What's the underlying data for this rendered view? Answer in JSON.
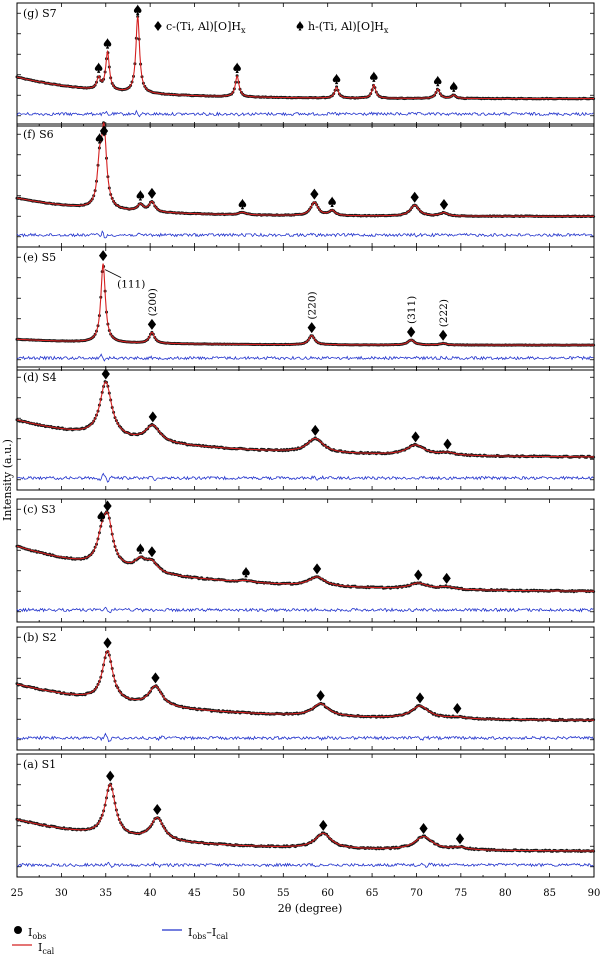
{
  "chart_data": {
    "type": "line",
    "xlabel": "2θ (degree)",
    "ylabel": "Intensity (a.u.)",
    "xlim": [
      25,
      90
    ],
    "xticks": [
      25,
      30,
      35,
      40,
      45,
      50,
      55,
      60,
      65,
      70,
      75,
      80,
      85,
      90
    ],
    "grid": false,
    "top_legend": [
      {
        "marker": "diamond",
        "label": "c-(Ti, Al)[O]H",
        "sub": "x"
      },
      {
        "marker": "spade",
        "label": "h-(Ti, Al)[O]H",
        "sub": "x"
      }
    ],
    "bottom_legend": [
      {
        "marker": "dot",
        "label": "I",
        "sub": "obs"
      },
      {
        "marker": "blue-line",
        "label": "I",
        "sub": "obs",
        "mid": "–I",
        "sub2": "cal"
      },
      {
        "marker": "red-line",
        "label": "I",
        "sub": "cal"
      }
    ],
    "series_colors": {
      "obs": "#1a1a1a",
      "cal": "#d42020",
      "diff": "#2233cc"
    },
    "panels": [
      {
        "label": "(g) S7",
        "background": {
          "start": 0.3,
          "decay": 0.1,
          "end": 0.04,
          "hump": 0.0
        },
        "noise": 0.002,
        "peaks": [
          {
            "x": 34.2,
            "h": 0.14,
            "w": 0.25,
            "marker": "spade"
          },
          {
            "x": 35.2,
            "h": 0.46,
            "w": 0.25,
            "marker": "spade"
          },
          {
            "x": 38.6,
            "h": 0.92,
            "w": 0.25,
            "marker": "spade"
          },
          {
            "x": 49.8,
            "h": 0.25,
            "w": 0.25,
            "marker": "spade"
          },
          {
            "x": 61.0,
            "h": 0.13,
            "w": 0.25,
            "marker": "spade"
          },
          {
            "x": 65.2,
            "h": 0.16,
            "w": 0.25,
            "marker": "spade"
          },
          {
            "x": 72.4,
            "h": 0.11,
            "w": 0.28,
            "marker": "spade"
          },
          {
            "x": 74.2,
            "h": 0.04,
            "w": 0.3,
            "marker": "spade"
          }
        ],
        "hkl": []
      },
      {
        "label": "(f) S6",
        "background": {
          "start": 0.3,
          "decay": 0.1,
          "end": 0.08,
          "hump": 0.0
        },
        "noise": 0.002,
        "peaks": [
          {
            "x": 34.3,
            "h": 0.45,
            "w": 0.3,
            "marker": "spade"
          },
          {
            "x": 34.8,
            "h": 0.92,
            "w": 0.35,
            "marker": "diamond"
          },
          {
            "x": 38.9,
            "h": 0.08,
            "w": 0.4,
            "marker": "spade"
          },
          {
            "x": 40.2,
            "h": 0.12,
            "w": 0.4,
            "marker": "diamond"
          },
          {
            "x": 50.4,
            "h": 0.03,
            "w": 0.5,
            "marker": "spade"
          },
          {
            "x": 58.5,
            "h": 0.16,
            "w": 0.5,
            "marker": "diamond"
          },
          {
            "x": 60.5,
            "h": 0.06,
            "w": 0.4,
            "marker": "spade"
          },
          {
            "x": 69.8,
            "h": 0.13,
            "w": 0.6,
            "marker": "diamond"
          },
          {
            "x": 73.1,
            "h": 0.04,
            "w": 0.5,
            "marker": "diamond"
          }
        ],
        "hkl": []
      },
      {
        "label": "(e) S5",
        "background": {
          "start": 0.08,
          "decay": 0.08,
          "end": 0.01,
          "hump": 0.0
        },
        "noise": 0.001,
        "peaks": [
          {
            "x": 34.7,
            "h": 0.95,
            "w": 0.3,
            "marker": "diamond"
          },
          {
            "x": 40.2,
            "h": 0.13,
            "w": 0.35,
            "marker": "diamond"
          },
          {
            "x": 58.2,
            "h": 0.11,
            "w": 0.4,
            "marker": "diamond"
          },
          {
            "x": 69.4,
            "h": 0.06,
            "w": 0.45,
            "marker": "diamond"
          },
          {
            "x": 73.0,
            "h": 0.02,
            "w": 0.4,
            "marker": "diamond"
          }
        ],
        "hkl": [
          {
            "x": 34.7,
            "text": "(111)",
            "rotated": false
          },
          {
            "x": 40.2,
            "text": "(200)",
            "rotated": true
          },
          {
            "x": 58.2,
            "text": "(220)",
            "rotated": true
          },
          {
            "x": 69.4,
            "text": "(311)",
            "rotated": true
          },
          {
            "x": 73.0,
            "text": "(222)",
            "rotated": true
          }
        ]
      },
      {
        "label": "(d) S4",
        "background": {
          "start": 0.55,
          "decay": 0.06,
          "end": 0.1,
          "hump": 0.0
        },
        "noise": 0.004,
        "peaks": [
          {
            "x": 35.0,
            "h": 0.66,
            "w": 0.8,
            "marker": "diamond"
          },
          {
            "x": 40.3,
            "h": 0.2,
            "w": 1.0,
            "marker": "diamond"
          },
          {
            "x": 58.6,
            "h": 0.17,
            "w": 1.1,
            "marker": "diamond"
          },
          {
            "x": 69.9,
            "h": 0.12,
            "w": 1.2,
            "marker": "diamond"
          },
          {
            "x": 73.5,
            "h": 0.03,
            "w": 1.0,
            "marker": "diamond"
          }
        ],
        "hkl": []
      },
      {
        "label": "(c) S3",
        "background": {
          "start": 0.62,
          "decay": 0.06,
          "end": 0.07,
          "hump": 0.0
        },
        "noise": 0.004,
        "peaks": [
          {
            "x": 34.5,
            "h": 0.22,
            "w": 0.6,
            "marker": "spade"
          },
          {
            "x": 35.2,
            "h": 0.56,
            "w": 0.7,
            "marker": "diamond"
          },
          {
            "x": 38.9,
            "h": 0.13,
            "w": 0.8,
            "marker": "spade"
          },
          {
            "x": 40.2,
            "h": 0.12,
            "w": 0.8,
            "marker": "diamond"
          },
          {
            "x": 50.8,
            "h": 0.02,
            "w": 0.9,
            "marker": "spade"
          },
          {
            "x": 58.8,
            "h": 0.11,
            "w": 1.1,
            "marker": "diamond"
          },
          {
            "x": 70.2,
            "h": 0.07,
            "w": 1.2,
            "marker": "diamond"
          },
          {
            "x": 73.4,
            "h": 0.03,
            "w": 1.0,
            "marker": "diamond"
          }
        ],
        "hkl": []
      },
      {
        "label": "(b) S2",
        "background": {
          "start": 0.5,
          "decay": 0.06,
          "end": 0.06,
          "hump": 0.0
        },
        "noise": 0.004,
        "peaks": [
          {
            "x": 35.2,
            "h": 0.6,
            "w": 0.7,
            "marker": "diamond"
          },
          {
            "x": 40.6,
            "h": 0.24,
            "w": 0.9,
            "marker": "diamond"
          },
          {
            "x": 59.2,
            "h": 0.15,
            "w": 1.1,
            "marker": "diamond"
          },
          {
            "x": 70.4,
            "h": 0.15,
            "w": 1.2,
            "marker": "diamond"
          },
          {
            "x": 74.6,
            "h": 0.02,
            "w": 1.0,
            "marker": "diamond"
          }
        ],
        "hkl": []
      },
      {
        "label": "(a) S1",
        "background": {
          "start": 0.4,
          "decay": 0.07,
          "end": 0.02,
          "hump": 0.0
        },
        "noise": 0.004,
        "peaks": [
          {
            "x": 35.5,
            "h": 0.62,
            "w": 0.7,
            "marker": "diamond"
          },
          {
            "x": 40.8,
            "h": 0.27,
            "w": 0.9,
            "marker": "diamond"
          },
          {
            "x": 59.5,
            "h": 0.18,
            "w": 1.1,
            "marker": "diamond"
          },
          {
            "x": 70.8,
            "h": 0.16,
            "w": 1.2,
            "marker": "diamond"
          },
          {
            "x": 74.9,
            "h": 0.03,
            "w": 1.0,
            "marker": "diamond"
          }
        ],
        "hkl": []
      }
    ]
  }
}
